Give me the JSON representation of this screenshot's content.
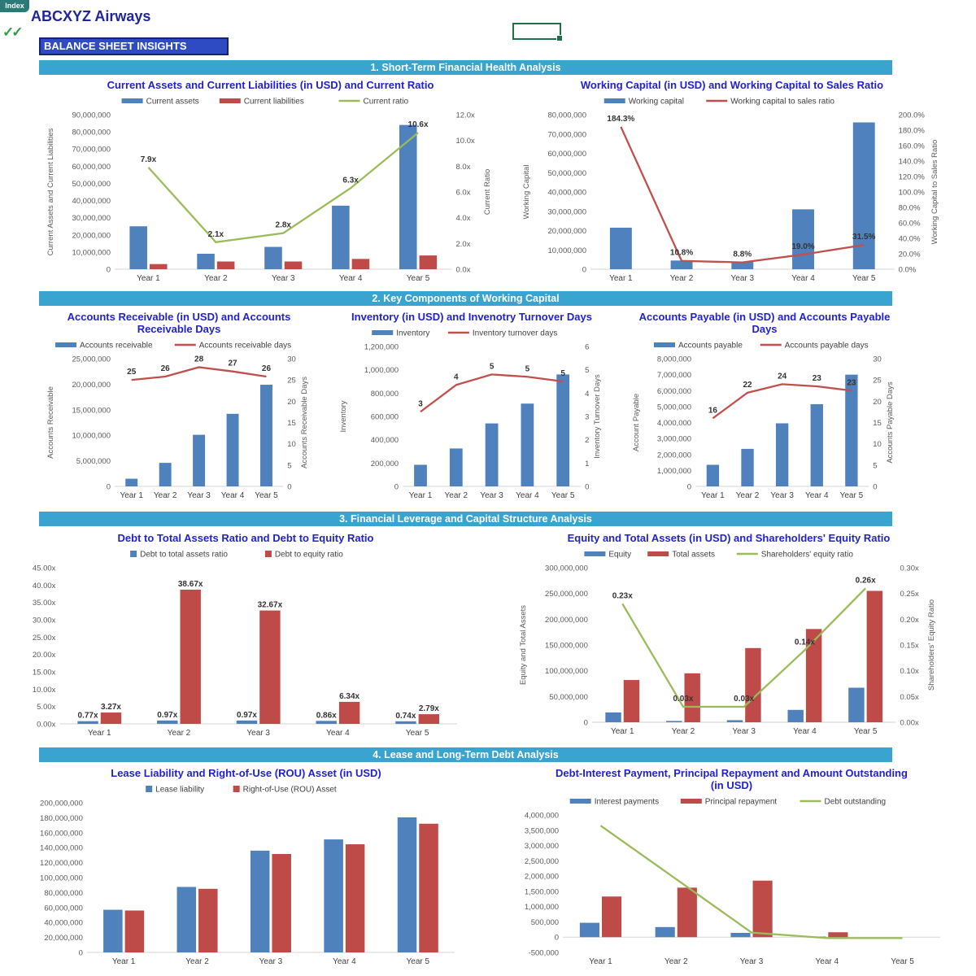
{
  "header": {
    "index_tab_label": "Index",
    "company_title": "ABCXYZ Airways",
    "checkmarks": "✓✓",
    "banner": "BALANCE SHEET INSIGHTS"
  },
  "sections": [
    "1. Short-Term Financial Health Analysis",
    "2. Key Components of Working Capital",
    "3. Financial Leverage and Capital Structure Analysis",
    "4. Lease and Long-Term Debt Analysis"
  ],
  "colors": {
    "bar_blue": "#4F81BD",
    "bar_red": "#BE4B48",
    "line_red": "#C0504D",
    "line_green": "#9BBB59",
    "chart_title": "#2222CC",
    "section_bg": "#38A4CF",
    "banner_bg": "#2F4BC4",
    "banner_border": "#16246B",
    "index_tab_bg": "#2B7A78",
    "check_green": "#2E9E46",
    "selection_border": "#1E7145",
    "header_title": "#1F2699",
    "tick_text": "#595959",
    "label_text": "#333333"
  },
  "chart_data": [
    {
      "type": "bar",
      "id": "current-assets-liabilities-ratio",
      "title": "Current Assets and Current Liabilities (in USD) and Current Ratio",
      "categories": [
        "Year 1",
        "Year 2",
        "Year 3",
        "Year 4",
        "Year 5"
      ],
      "legend_marker": "rect",
      "left_axis": {
        "min": 0,
        "max": 90000000,
        "step": 10000000,
        "format": "num",
        "label": "Current Assets and Current Liabilities"
      },
      "right_axis": {
        "min": 0,
        "max": 12,
        "step": 2,
        "format": "x1",
        "label": "Current Ratio"
      },
      "bar_series": [
        {
          "name": "Current assets",
          "color": "#4F81BD",
          "values": [
            25000000,
            9000000,
            13000000,
            37000000,
            84000000
          ]
        },
        {
          "name": "Current liabilities",
          "color": "#BE4B48",
          "values": [
            3000000,
            4500000,
            4500000,
            6000000,
            8000000
          ]
        }
      ],
      "line_series": [
        {
          "name": "Current ratio",
          "color": "#9BBB59",
          "axis": "right",
          "values": [
            7.9,
            2.1,
            2.8,
            6.3,
            10.6
          ],
          "labels": [
            "7.9x",
            "2.1x",
            "2.8x",
            "6.3x",
            "10.6x"
          ]
        }
      ]
    },
    {
      "type": "bar",
      "id": "working-capital",
      "title": "Working Capital (in USD) and Working Capital to Sales Ratio",
      "categories": [
        "Year 1",
        "Year 2",
        "Year 3",
        "Year 4",
        "Year 5"
      ],
      "legend_marker": "rect",
      "left_axis": {
        "min": 0,
        "max": 80000000,
        "step": 10000000,
        "format": "num",
        "label": "Working Capital"
      },
      "right_axis": {
        "min": 0,
        "max": 200,
        "step": 20,
        "format": "pct1",
        "label": "Working Capital to Sales Ratio"
      },
      "bar_series": [
        {
          "name": "Working capital",
          "color": "#4F81BD",
          "values": [
            21500000,
            4500000,
            4000000,
            31000000,
            76000000
          ]
        }
      ],
      "line_series": [
        {
          "name": "Working capital to sales ratio",
          "color": "#C0504D",
          "axis": "right",
          "values": [
            184.3,
            10.8,
            8.8,
            19.0,
            31.5
          ],
          "labels": [
            "184.3%",
            "10.8%",
            "8.8%",
            "19.0%",
            "31.5%"
          ]
        }
      ]
    },
    {
      "type": "bar",
      "id": "accounts-receivable",
      "title": "Accounts Receivable (in USD) and Accounts\nReceivable Days",
      "categories": [
        "Year 1",
        "Year 2",
        "Year 3",
        "Year 4",
        "Year 5"
      ],
      "legend_marker": "rect",
      "left_axis": {
        "min": 0,
        "max": 25000000,
        "step": 5000000,
        "format": "num",
        "label": "Accounts Receivable"
      },
      "right_axis": {
        "min": 0,
        "max": 30,
        "step": 5,
        "format": "int",
        "label": "Accounts Receivable Days"
      },
      "bar_series": [
        {
          "name": "Accounts receivable",
          "color": "#4F81BD",
          "values": [
            1500000,
            4600000,
            10100000,
            14200000,
            19900000
          ]
        }
      ],
      "line_series": [
        {
          "name": "Accounts receivable days",
          "color": "#C0504D",
          "axis": "right",
          "values": [
            25,
            25.8,
            28,
            27,
            25.8
          ],
          "labels": [
            "25",
            "26",
            "28",
            "27",
            "26"
          ]
        }
      ]
    },
    {
      "type": "bar",
      "id": "inventory",
      "title": "Inventory (in USD) and Invenotry Turnover Days",
      "categories": [
        "Year 1",
        "Year 2",
        "Year 3",
        "Year 4",
        "Year 5"
      ],
      "legend_marker": "rect",
      "left_axis": {
        "min": 0,
        "max": 1200000,
        "step": 200000,
        "format": "num",
        "label": "Inventory"
      },
      "right_axis": {
        "min": 0,
        "max": 6,
        "step": 1,
        "format": "int",
        "label": "Inventory Turnover Days"
      },
      "bar_series": [
        {
          "name": "Inventory",
          "color": "#4F81BD",
          "values": [
            185000,
            325000,
            540000,
            710000,
            960000
          ]
        }
      ],
      "line_series": [
        {
          "name": "Inventory turnover days",
          "color": "#C0504D",
          "axis": "right",
          "values": [
            3.2,
            4.35,
            4.8,
            4.7,
            4.5
          ],
          "labels": [
            "3",
            "4",
            "5",
            "5",
            "5"
          ]
        }
      ]
    },
    {
      "type": "bar",
      "id": "accounts-payable",
      "title": "Accounts Payable (in USD) and Accounts Payable\nDays",
      "categories": [
        "Year 1",
        "Year 2",
        "Year 3",
        "Year 4",
        "Year 5"
      ],
      "legend_marker": "rect",
      "left_axis": {
        "min": 0,
        "max": 8000000,
        "step": 1000000,
        "format": "num",
        "label": "Account Payable"
      },
      "right_axis": {
        "min": 0,
        "max": 30,
        "step": 5,
        "format": "int",
        "label": "Accounts Payable Days"
      },
      "bar_series": [
        {
          "name": "Accounts payable",
          "color": "#4F81BD",
          "values": [
            1350000,
            2350000,
            3950000,
            5150000,
            7000000
          ]
        }
      ],
      "line_series": [
        {
          "name": "Accounts payable days",
          "color": "#C0504D",
          "axis": "right",
          "values": [
            16,
            22,
            24,
            23.5,
            22.5
          ],
          "labels": [
            "16",
            "22",
            "24",
            "23",
            "23"
          ]
        }
      ]
    },
    {
      "type": "bar",
      "id": "debt-ratios",
      "title": "Debt to Total Assets Ratio and Debt to Equity Ratio",
      "categories": [
        "Year 1",
        "Year 2",
        "Year 3",
        "Year 4",
        "Year 5"
      ],
      "legend_marker": "square",
      "left_axis": {
        "min": 0,
        "max": 45,
        "step": 5,
        "format": "x2",
        "label": ""
      },
      "bar_series": [
        {
          "name": "Debt to total assets ratio",
          "color": "#4F81BD",
          "values": [
            0.77,
            0.97,
            0.97,
            0.86,
            0.74
          ],
          "labels": [
            "0.77x",
            "0.97x",
            "0.97x",
            "0.86x",
            "0.74x"
          ]
        },
        {
          "name": "Debt to equity ratio",
          "color": "#BE4B48",
          "values": [
            3.27,
            38.67,
            32.67,
            6.34,
            2.79
          ],
          "labels": [
            "3.27x",
            "38.67x",
            "32.67x",
            "6.34x",
            "2.79x"
          ]
        }
      ],
      "line_series": []
    },
    {
      "type": "bar",
      "id": "equity-total-assets",
      "title": "Equity and Total Assets (in USD) and Shareholders' Equity Ratio",
      "categories": [
        "Year 1",
        "Year 2",
        "Year 3",
        "Year 4",
        "Year 5"
      ],
      "legend_marker": "rect",
      "left_axis": {
        "min": 0,
        "max": 300000000,
        "step": 50000000,
        "format": "num",
        "label": "Equity and Total Assets"
      },
      "right_axis": {
        "min": 0,
        "max": 0.3,
        "step": 0.05,
        "format": "x2",
        "label": "Shareholders' Equity  Ratio"
      },
      "bar_series": [
        {
          "name": "Equity",
          "color": "#4F81BD",
          "values": [
            19000000,
            2500000,
            4000000,
            24000000,
            67000000
          ]
        },
        {
          "name": "Total assets",
          "color": "#BE4B48",
          "values": [
            82000000,
            95000000,
            144000000,
            181000000,
            255000000
          ]
        }
      ],
      "line_series": [
        {
          "name": "Shareholders' equity ratio",
          "color": "#9BBB59",
          "axis": "right",
          "values": [
            0.23,
            0.03,
            0.03,
            0.14,
            0.26
          ],
          "labels": [
            "0.23x",
            "0.03x",
            "0.03x",
            "0.14x",
            "0.26x"
          ]
        }
      ]
    },
    {
      "type": "bar",
      "id": "lease-rou",
      "title": "Lease Liability and Right-of-Use (ROU) Asset (in USD)",
      "categories": [
        "Year 1",
        "Year 2",
        "Year 3",
        "Year 4",
        "Year 5"
      ],
      "legend_marker": "square",
      "left_axis": {
        "min": 0,
        "max": 200000000,
        "step": 20000000,
        "format": "num",
        "label": ""
      },
      "bar_series": [
        {
          "name": "Lease liability",
          "color": "#4F81BD",
          "values": [
            57000000,
            87500000,
            136000000,
            151000000,
            180500000
          ]
        },
        {
          "name": "Right-of-Use (ROU) Asset",
          "color": "#BE4B48",
          "values": [
            56000000,
            85000000,
            131500000,
            144500000,
            172000000
          ]
        }
      ],
      "line_series": []
    },
    {
      "type": "bar",
      "id": "debt-payments",
      "title": "Debt-Interest Payment, Principal Repayment and Amount Outstanding\n(in USD)",
      "categories": [
        "Year 1",
        "Year 2",
        "Year 3",
        "Year 4",
        "Year 5"
      ],
      "legend_marker": "rect",
      "left_axis": {
        "min": -500000,
        "max": 4000000,
        "step": 500000,
        "format": "num",
        "label": ""
      },
      "bar_series": [
        {
          "name": "Interest payments",
          "color": "#4F81BD",
          "values": [
            470000,
            330000,
            140000,
            20000,
            0
          ]
        },
        {
          "name": "Principal repayment",
          "color": "#BE4B48",
          "values": [
            1330000,
            1620000,
            1850000,
            160000,
            0
          ]
        }
      ],
      "line_series": [
        {
          "name": "Debt outstanding",
          "color": "#9BBB59",
          "axis": "left",
          "values": [
            3650000,
            1900000,
            150000,
            -30000,
            -30000
          ]
        }
      ]
    }
  ]
}
